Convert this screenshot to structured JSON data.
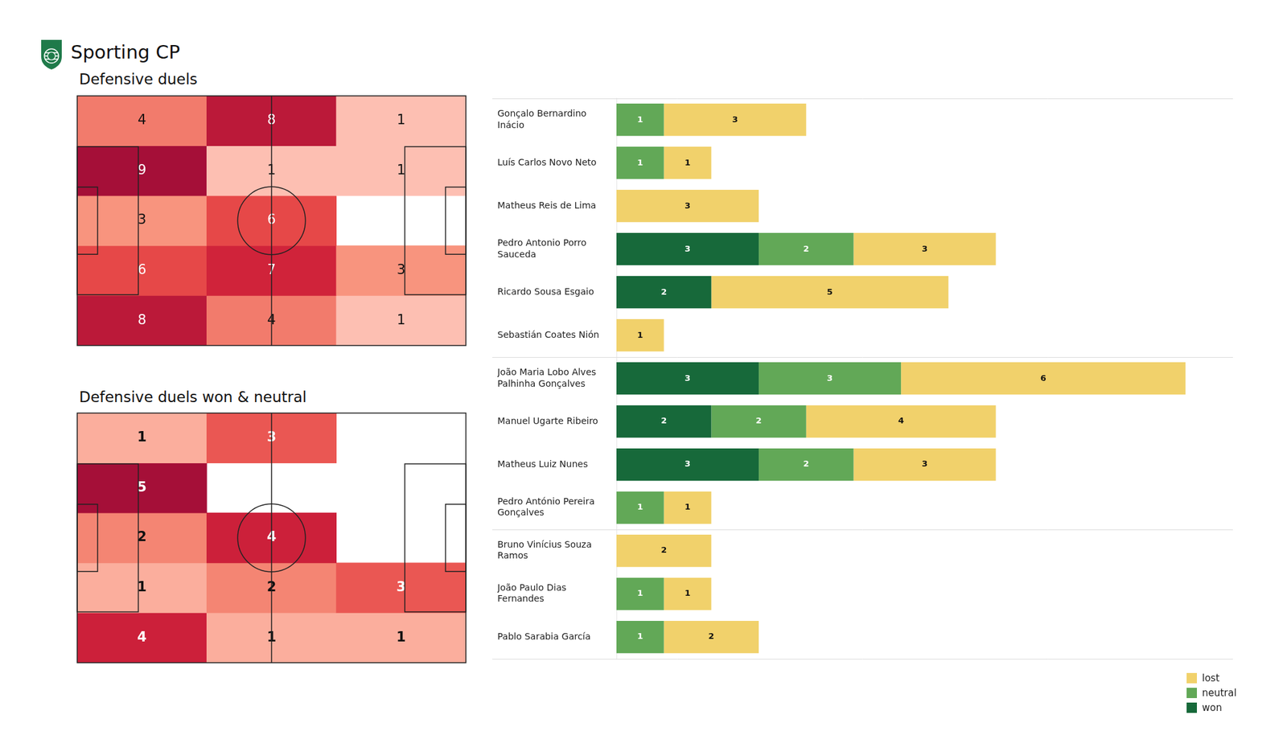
{
  "title": "Sporting CP",
  "chart_data": [
    {
      "type": "heatmap",
      "title": "Defensive duels",
      "data_labels": true,
      "tick_labels": false,
      "cells": [
        [
          4,
          8,
          1
        ],
        [
          9,
          1,
          1
        ],
        [
          3,
          6,
          null
        ],
        [
          6,
          7,
          3
        ],
        [
          8,
          4,
          1
        ]
      ]
    },
    {
      "type": "heatmap",
      "title": "Defensive duels won & neutral",
      "data_labels": true,
      "tick_labels": false,
      "cells": [
        [
          1,
          3,
          null
        ],
        [
          5,
          null,
          null
        ],
        [
          2,
          4,
          null
        ],
        [
          1,
          2,
          3
        ],
        [
          4,
          1,
          1
        ]
      ]
    },
    {
      "type": "bar",
      "orientation": "horizontal",
      "stacked": true,
      "data_labels": true,
      "tick_labels": "y",
      "legend": "lower right",
      "xlim": [
        0,
        13
      ],
      "categories": [
        "Gonçalo Bernardino Inácio",
        "Luís Carlos Novo Neto",
        "Matheus Reis de Lima",
        "Pedro Antonio Porro Sauceda",
        "Ricardo Sousa Esgaio",
        "Sebastián Coates Nión",
        "João Maria Lobo Alves Palhinha Gonçalves",
        "Manuel Ugarte Ribeiro",
        "Matheus Luiz Nunes",
        "Pedro António Pereira Gonçalves",
        "Bruno Vinícius Souza Ramos",
        "João Paulo Dias Fernandes",
        "Pablo Sarabia García"
      ],
      "series": [
        {
          "name": "won",
          "color": "#17693a",
          "values": [
            null,
            null,
            null,
            3,
            2,
            null,
            3,
            2,
            3,
            null,
            null,
            null,
            null
          ]
        },
        {
          "name": "neutral",
          "color": "#62a857",
          "values": [
            1,
            1,
            null,
            2,
            null,
            null,
            3,
            2,
            2,
            1,
            null,
            1,
            1
          ]
        },
        {
          "name": "lost",
          "color": "#f1d16b",
          "values": [
            3,
            1,
            3,
            3,
            5,
            1,
            6,
            4,
            3,
            1,
            2,
            1,
            2
          ]
        }
      ]
    }
  ]
}
